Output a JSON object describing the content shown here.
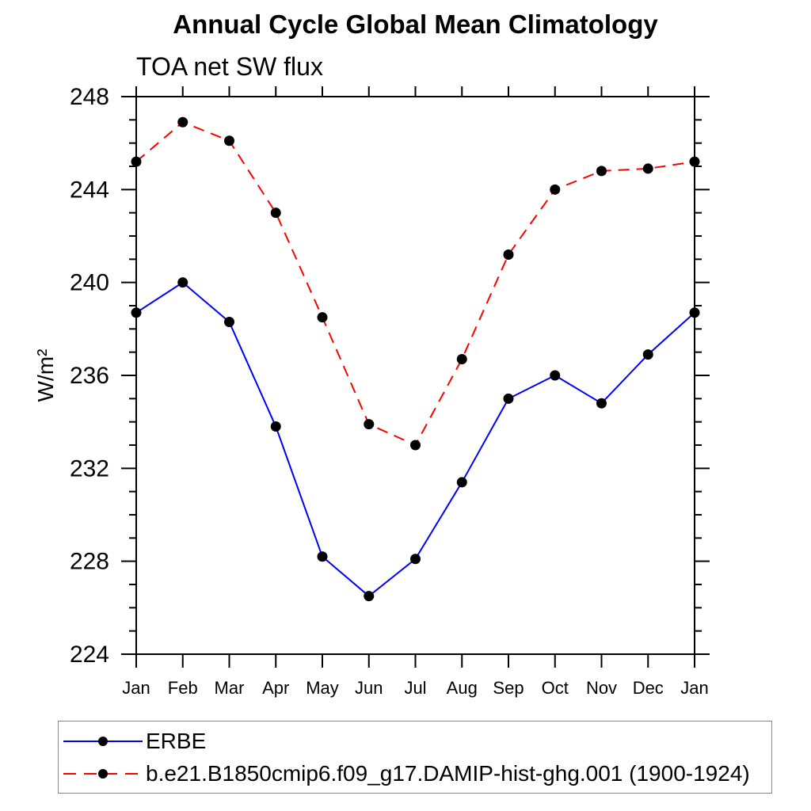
{
  "chart_data": {
    "type": "line",
    "title": "Annual Cycle Global Mean Climatology",
    "subtitle": "TOA net SW flux",
    "ylabel": "W/m²",
    "xlabel": "",
    "categories": [
      "Jan",
      "Feb",
      "Mar",
      "Apr",
      "May",
      "Jun",
      "Jul",
      "Aug",
      "Sep",
      "Oct",
      "Nov",
      "Dec",
      "Jan"
    ],
    "ylim": [
      224,
      248
    ],
    "ytick_major": [
      224,
      228,
      232,
      236,
      240,
      244,
      248
    ],
    "ytick_minor_step": 1,
    "grid": false,
    "legend_position": "bottom",
    "frame_color": "#000000",
    "series": [
      {
        "name": "ERBE",
        "color": "#0000ff",
        "style": "solid",
        "marker": "circle",
        "marker_color": "#000000",
        "values": [
          238.7,
          240.0,
          238.3,
          233.8,
          228.2,
          226.5,
          228.1,
          231.4,
          235.0,
          236.0,
          234.8,
          236.9,
          238.7
        ]
      },
      {
        "name": "b.e21.B1850cmip6.f09_g17.DAMIP-hist-ghg.001 (1900-1924)",
        "color": "#ff0000",
        "style": "dashed",
        "marker": "circle",
        "marker_color": "#000000",
        "values": [
          245.2,
          246.9,
          246.1,
          243.0,
          238.5,
          233.9,
          233.0,
          236.7,
          241.2,
          244.0,
          244.8,
          244.9,
          245.2
        ]
      }
    ]
  }
}
